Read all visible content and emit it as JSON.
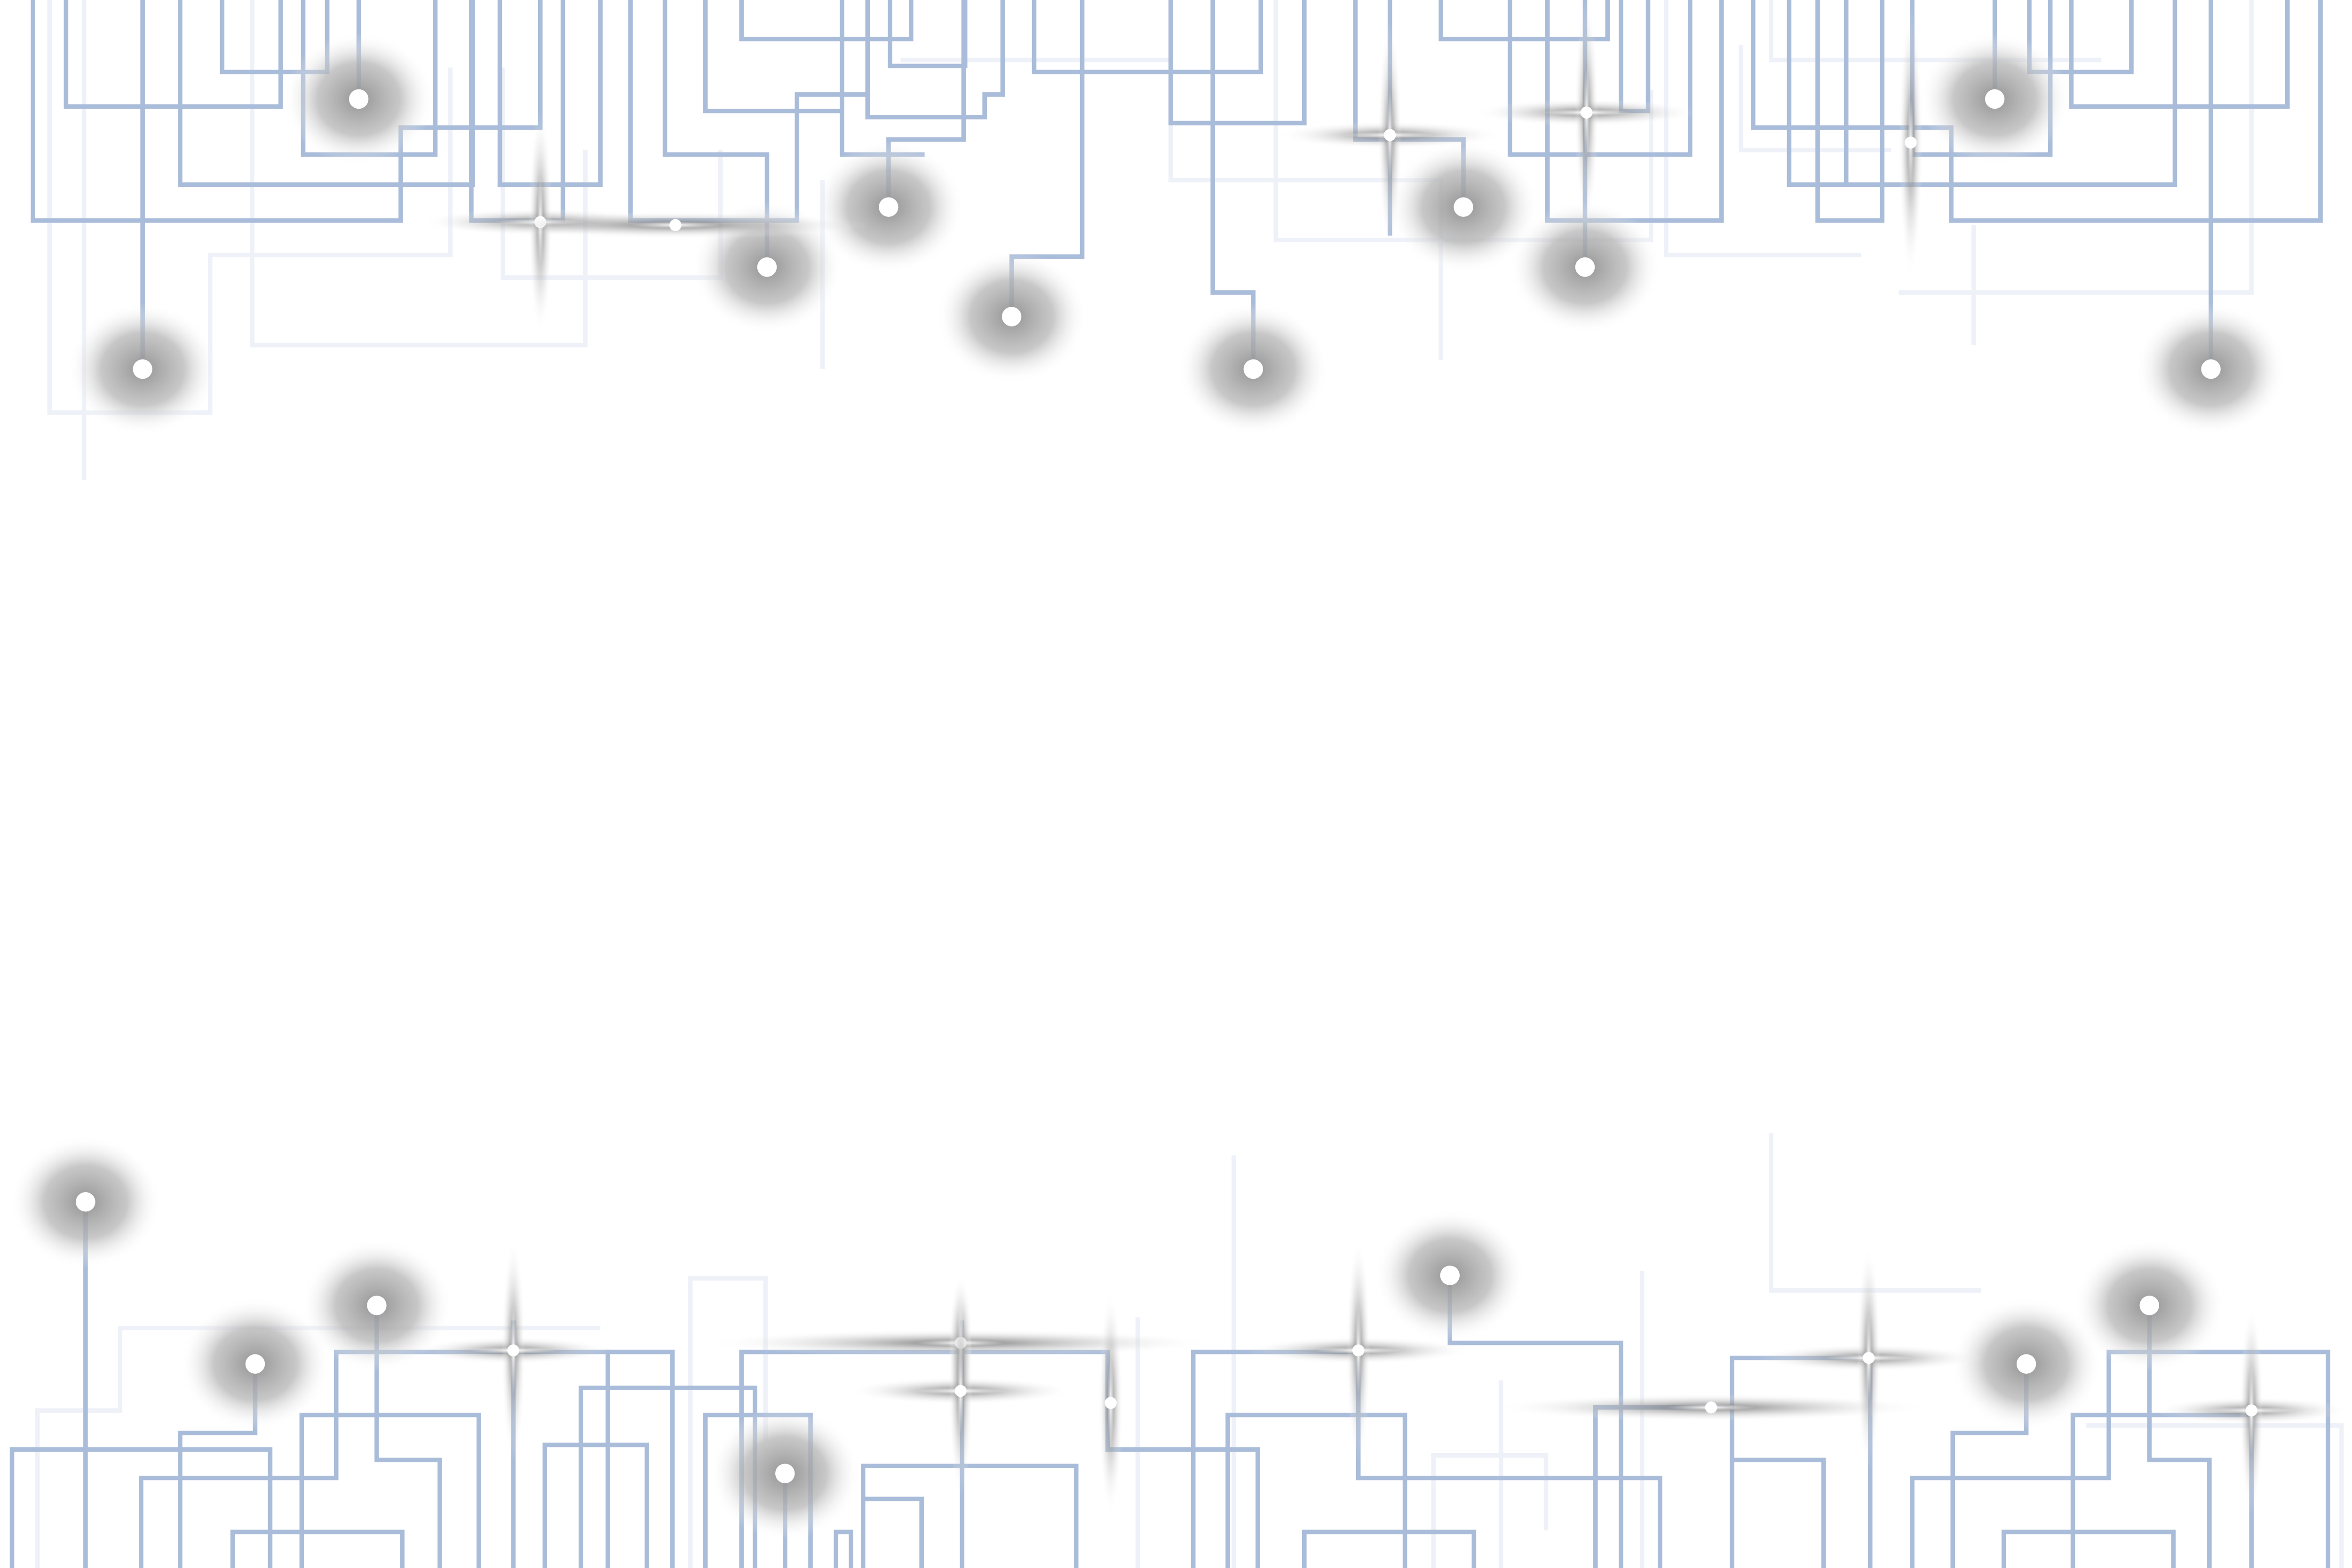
{
  "canvas": {
    "name": "circuit-board-border-background",
    "colors": {
      "background": "#ffffff",
      "trace": "#a9bcd9",
      "faint_trace": "#eef1f8",
      "node": "#ffffff",
      "glow": "#9a9a9a",
      "sparkle_core": "#ffffff",
      "sparkle_ray": "#7a7a7a"
    },
    "icons": [
      "circuit-node-icon",
      "sparkle-icon"
    ]
  }
}
